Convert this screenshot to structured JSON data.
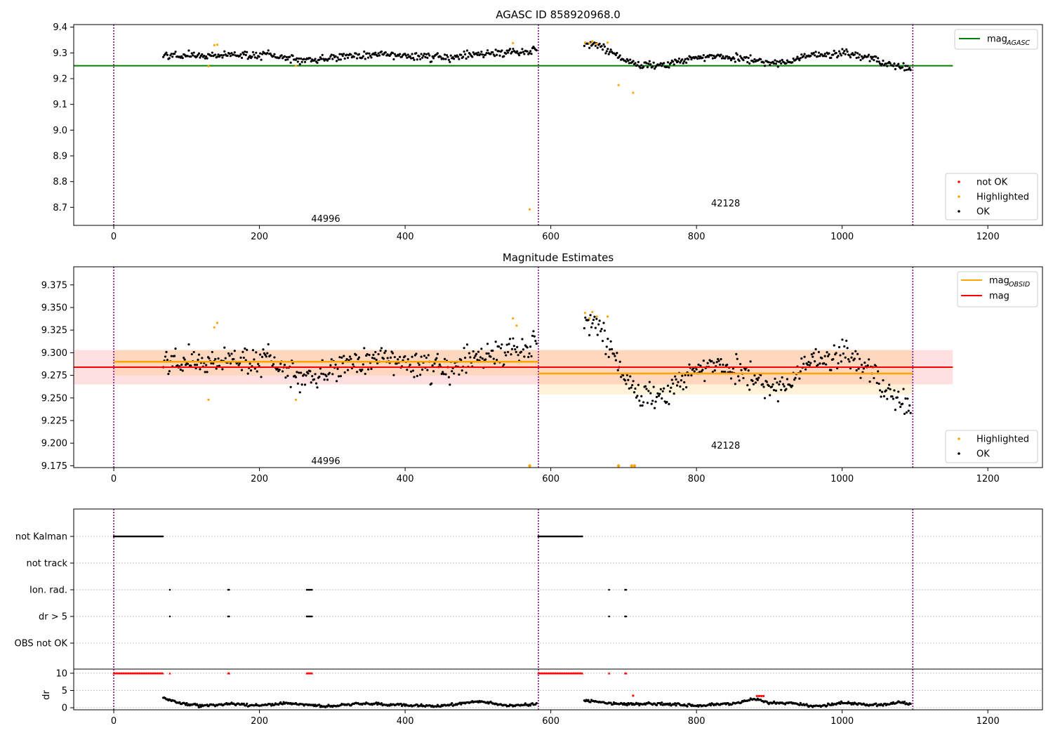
{
  "colors": {
    "ok": "#000000",
    "highlighted": "#ffa500",
    "not_ok": "#ff0000",
    "agasc": "#008000",
    "mag": "#ff0000",
    "obsid": "#ffa500",
    "boundary": "#800080"
  },
  "chart_data": [
    {
      "type": "scatter",
      "title": "AGASC ID 858920968.0",
      "xlim": [
        -55,
        1275
      ],
      "ylim": [
        8.63,
        9.41
      ],
      "x_ticks": [
        "0",
        "200",
        "400",
        "600",
        "800",
        "1000",
        "1200"
      ],
      "y_ticks": [
        "8.7",
        "8.8",
        "8.9",
        "9.0",
        "9.1",
        "9.2",
        "9.3",
        "9.4"
      ],
      "obsid_boundaries": [
        0,
        583,
        1097
      ],
      "obsid_labels": [
        {
          "text": "44996",
          "x": 291,
          "y": 8.655
        },
        {
          "text": "42128",
          "x": 840,
          "y": 8.715
        }
      ],
      "legend_line": {
        "label": "mag",
        "sub": "AGASC"
      },
      "legend_points": [
        {
          "label": "not OK",
          "color": "#ff0000"
        },
        {
          "label": "Highlighted",
          "color": "#ffa500"
        },
        {
          "label": "OK",
          "color": "#000000"
        }
      ],
      "mag_agasc": {
        "value": 9.25,
        "x_range": [
          -55,
          1152
        ]
      },
      "series": [
        {
          "name": "OK",
          "x_range": [
            68,
            581
          ],
          "segments": [
            [
              68,
              9.29
            ],
            [
              150,
              9.293
            ],
            [
              210,
              9.29
            ],
            [
              260,
              9.27
            ],
            [
              330,
              9.29
            ],
            [
              400,
              9.29
            ],
            [
              450,
              9.28
            ],
            [
              520,
              9.3
            ],
            [
              581,
              9.31
            ]
          ],
          "noise": 0.012
        },
        {
          "name": "OK",
          "x_range": [
            646,
            1095
          ],
          "segments": [
            [
              646,
              9.33
            ],
            [
              670,
              9.325
            ],
            [
              700,
              9.27
            ],
            [
              730,
              9.25
            ],
            [
              750,
              9.25
            ],
            [
              800,
              9.285
            ],
            [
              860,
              9.28
            ],
            [
              900,
              9.26
            ],
            [
              930,
              9.265
            ],
            [
              950,
              9.29
            ],
            [
              1000,
              9.3
            ],
            [
              1040,
              9.28
            ],
            [
              1060,
              9.26
            ],
            [
              1095,
              9.235
            ]
          ],
          "noise": 0.012
        },
        {
          "name": "Highlighted",
          "points": [
            [
              130,
              9.248
            ],
            [
              138,
              9.33
            ],
            [
              142,
              9.332
            ],
            [
              250,
              9.25
            ],
            [
              548,
              9.338
            ],
            [
              571,
              8.692
            ],
            [
              647,
              9.34
            ],
            [
              653,
              9.338
            ],
            [
              657,
              9.345
            ],
            [
              663,
              9.335
            ],
            [
              678,
              9.34
            ],
            [
              693,
              9.175
            ],
            [
              713,
              9.145
            ]
          ]
        }
      ]
    },
    {
      "type": "scatter",
      "title": "Magnitude Estimates",
      "xlim": [
        -55,
        1275
      ],
      "ylim": [
        9.173,
        9.395
      ],
      "x_ticks": [
        "0",
        "200",
        "400",
        "600",
        "800",
        "1000",
        "1200"
      ],
      "y_ticks": [
        "9.175",
        "9.200",
        "9.225",
        "9.250",
        "9.275",
        "9.300",
        "9.325",
        "9.350",
        "9.375"
      ],
      "obsid_boundaries": [
        0,
        583,
        1097
      ],
      "obsid_labels": [
        {
          "text": "44996",
          "x": 291,
          "y": 9.18
        },
        {
          "text": "42128",
          "x": 840,
          "y": 9.197
        }
      ],
      "legend_lines": [
        {
          "label": "mag",
          "sub": "OBSID",
          "color": "#ffa500"
        },
        {
          "label": "mag",
          "sub": "",
          "color": "#ff0000"
        }
      ],
      "legend_points": [
        {
          "label": "Highlighted",
          "color": "#ffa500"
        },
        {
          "label": "OK",
          "color": "#000000"
        }
      ],
      "mag": {
        "value": 9.284,
        "band": [
          9.265,
          9.303
        ],
        "x_range": [
          -55,
          1152
        ]
      },
      "mag_obsid": [
        {
          "value": 9.29,
          "band": [
            9.275,
            9.303
          ],
          "x_range": [
            0,
            583
          ]
        },
        {
          "value": 9.277,
          "band": [
            9.254,
            9.303
          ],
          "x_range": [
            583,
            1097
          ]
        }
      ],
      "series": [
        {
          "name": "OK",
          "x_range": [
            68,
            581
          ],
          "segments": [
            [
              68,
              9.29
            ],
            [
              150,
              9.293
            ],
            [
              210,
              9.29
            ],
            [
              260,
              9.27
            ],
            [
              330,
              9.29
            ],
            [
              400,
              9.29
            ],
            [
              450,
              9.28
            ],
            [
              520,
              9.3
            ],
            [
              581,
              9.31
            ]
          ],
          "noise": 0.012
        },
        {
          "name": "OK",
          "x_range": [
            646,
            1095
          ],
          "segments": [
            [
              646,
              9.33
            ],
            [
              670,
              9.325
            ],
            [
              700,
              9.27
            ],
            [
              730,
              9.25
            ],
            [
              750,
              9.25
            ],
            [
              800,
              9.285
            ],
            [
              860,
              9.28
            ],
            [
              900,
              9.26
            ],
            [
              930,
              9.265
            ],
            [
              950,
              9.29
            ],
            [
              1000,
              9.3
            ],
            [
              1040,
              9.28
            ],
            [
              1060,
              9.26
            ],
            [
              1095,
              9.235
            ]
          ],
          "noise": 0.012
        },
        {
          "name": "Highlighted",
          "points": [
            [
              130,
              9.248
            ],
            [
              138,
              9.328
            ],
            [
              142,
              9.333
            ],
            [
              250,
              9.248
            ],
            [
              548,
              9.338
            ],
            [
              553,
              9.33
            ],
            [
              647,
              9.344
            ],
            [
              653,
              9.338
            ],
            [
              657,
              9.345
            ],
            [
              663,
              9.34
            ],
            [
              678,
              9.34
            ]
          ]
        },
        {
          "name": "Highlighted (off-axis)",
          "points": [
            [
              571,
              9.175
            ],
            [
              693,
              9.175
            ],
            [
              711,
              9.175
            ],
            [
              715,
              9.175
            ]
          ]
        }
      ]
    },
    {
      "type": "scatter",
      "title": "",
      "xlim": [
        -55,
        1275
      ],
      "categories": [
        "not Kalman",
        "not track",
        "Ion. rad.",
        "dr > 5",
        "OBS not OK"
      ],
      "obsid_boundaries": [
        0,
        583,
        1097
      ],
      "flags": {
        "not Kalman": [
          [
            0,
            68
          ],
          [
            583,
            644
          ]
        ],
        "not track": [],
        "Ion. rad.": [
          [
            77,
            78
          ],
          [
            157,
            159
          ],
          [
            265,
            272
          ],
          [
            680,
            681
          ],
          [
            702,
            704
          ]
        ],
        "dr > 5": [
          [
            77,
            78
          ],
          [
            157,
            159
          ],
          [
            265,
            272
          ],
          [
            680,
            681
          ],
          [
            702,
            704
          ]
        ],
        "OBS not OK": []
      }
    },
    {
      "type": "scatter",
      "title": "",
      "ylabel": "dr",
      "xlim": [
        -55,
        1275
      ],
      "ylim": [
        -0.6,
        11.2
      ],
      "x_ticks": [
        "0",
        "200",
        "400",
        "600",
        "800",
        "1000",
        "1200"
      ],
      "y_ticks": [
        "0",
        "5",
        "10"
      ],
      "obsid_boundaries": [
        0,
        583,
        1097
      ],
      "red_at_10": [
        [
          0,
          68
        ],
        [
          77,
          78
        ],
        [
          157,
          159
        ],
        [
          265,
          272
        ],
        [
          583,
          644
        ],
        [
          680,
          681
        ],
        [
          702,
          704
        ]
      ],
      "series": [
        {
          "name": "OK",
          "x_range": [
            68,
            581
          ],
          "segments": [
            [
              68,
              2.8
            ],
            [
              90,
              1.3
            ],
            [
              120,
              0.6
            ],
            [
              160,
              1.1
            ],
            [
              200,
              0.7
            ],
            [
              240,
              1.4
            ],
            [
              290,
              0.4
            ],
            [
              340,
              1.2
            ],
            [
              400,
              0.8
            ],
            [
              450,
              0.5
            ],
            [
              500,
              1.9
            ],
            [
              540,
              0.6
            ],
            [
              581,
              1.0
            ]
          ],
          "noise": 0.3
        },
        {
          "name": "OK",
          "x_range": [
            646,
            1095
          ],
          "segments": [
            [
              646,
              2.0
            ],
            [
              700,
              1.0
            ],
            [
              750,
              1.2
            ],
            [
              800,
              0.6
            ],
            [
              850,
              1.3
            ],
            [
              880,
              2.5
            ],
            [
              900,
              1.5
            ],
            [
              940,
              1.2
            ],
            [
              960,
              0.3
            ],
            [
              1000,
              1.4
            ],
            [
              1050,
              0.8
            ],
            [
              1080,
              1.6
            ],
            [
              1095,
              1.0
            ]
          ],
          "noise": 0.3
        },
        {
          "name": "red",
          "points": [
            [
              713,
              3.5
            ],
            [
              883,
              3.4
            ],
            [
              886,
              3.4
            ],
            [
              889,
              3.4
            ],
            [
              892,
              3.4
            ]
          ]
        }
      ]
    }
  ]
}
